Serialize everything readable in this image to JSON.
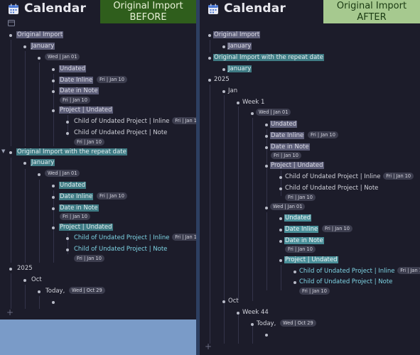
{
  "title": "Calendar",
  "left_banner": {
    "line1": "Original Import",
    "line2": "BEFORE"
  },
  "right_banner": {
    "line1": "Original Import",
    "line2": "AFTER"
  },
  "labels": {
    "original_import": "Original Import",
    "original_import_repeat": "Original Import with the repeat date",
    "january": "January",
    "year_2025": "2025",
    "jan": "Jan",
    "oct": "Oct",
    "week_1": "Week 1",
    "week_44": "Week 44",
    "undated": "Undated",
    "date_inline": "Date Inline",
    "date_in_note": "Date in Note",
    "project_undated": "Project | Undated",
    "child_inline": "Child of Undated Project | Inline",
    "child_note": "Child of Undated Project | Note",
    "today": "Today,"
  },
  "dates": {
    "wed_jan01": "Wed | Jan 01",
    "fri_jan10": "Fri | Jan 10",
    "wed_oct29": "Wed | Oct 29"
  },
  "colors": {
    "panel_bg": "#1c1c2a",
    "highlight_gray": "#5d5e78",
    "highlight_teal": "#3f7b84",
    "link_cyan": "#7fd6e6",
    "before_banner": "#2f5e1c",
    "after_banner": "#a6c98f"
  },
  "icons": {
    "calendar": "calendar-icon",
    "page": "page-icon",
    "add": "plus-icon",
    "collapse": "collapse-arrow-icon"
  }
}
